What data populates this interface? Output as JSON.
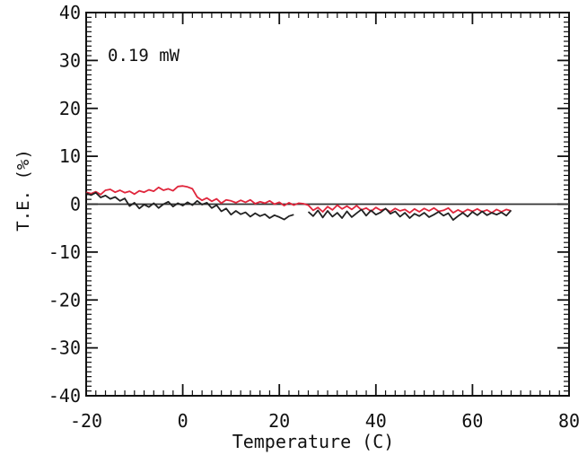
{
  "chart_data": {
    "type": "line",
    "title": "",
    "annotation": "0.19 mW",
    "xlabel": "Temperature (C)",
    "ylabel": "T.E. (%)",
    "xlim": [
      -20,
      80
    ],
    "ylim": [
      -40,
      40
    ],
    "xticks": [
      -20,
      0,
      20,
      40,
      60,
      80
    ],
    "yticks": [
      -40,
      -30,
      -20,
      -10,
      0,
      10,
      20,
      30,
      40
    ],
    "xtick_labels": [
      "-20",
      "0",
      "20",
      "40",
      "60",
      "80"
    ],
    "ytick_labels": [
      "-40",
      "-30",
      "-20",
      "-10",
      "0",
      "10",
      "20",
      "30",
      "40"
    ],
    "reference_line": {
      "y": 0,
      "color": "#333333"
    },
    "series": [
      {
        "color": "#e0263c",
        "points": [
          [
            -20,
            2.5
          ],
          [
            -19,
            2.2
          ],
          [
            -18,
            2.6
          ],
          [
            -17,
            2.0
          ],
          [
            -16,
            2.9
          ],
          [
            -15,
            3.1
          ],
          [
            -14,
            2.5
          ],
          [
            -13,
            2.9
          ],
          [
            -12,
            2.4
          ],
          [
            -11,
            2.7
          ],
          [
            -10,
            2.1
          ],
          [
            -9,
            2.8
          ],
          [
            -8,
            2.5
          ],
          [
            -7,
            3.0
          ],
          [
            -6,
            2.7
          ],
          [
            -5,
            3.5
          ],
          [
            -4,
            2.9
          ],
          [
            -3,
            3.2
          ],
          [
            -2,
            2.8
          ],
          [
            -1,
            3.7
          ],
          [
            0,
            3.8
          ],
          [
            1,
            3.6
          ],
          [
            2,
            3.2
          ],
          [
            3,
            1.5
          ],
          [
            4,
            0.8
          ],
          [
            5,
            1.3
          ],
          [
            6,
            0.6
          ],
          [
            7,
            1.1
          ],
          [
            8,
            0.2
          ],
          [
            9,
            0.9
          ],
          [
            10,
            0.7
          ],
          [
            11,
            0.3
          ],
          [
            12,
            0.8
          ],
          [
            13,
            0.4
          ],
          [
            14,
            0.9
          ],
          [
            15,
            0.1
          ],
          [
            16,
            0.5
          ],
          [
            17,
            0.2
          ],
          [
            18,
            0.7
          ],
          [
            19,
            0.0
          ],
          [
            20,
            0.4
          ],
          [
            21,
            -0.3
          ],
          [
            22,
            0.3
          ],
          [
            23,
            -0.2
          ],
          [
            24,
            0.2
          ],
          [
            25,
            0.1
          ],
          [
            26,
            -0.2
          ],
          [
            27,
            -1.3
          ],
          [
            28,
            -0.7
          ],
          [
            29,
            -1.6
          ],
          [
            30,
            -0.5
          ],
          [
            31,
            -1.2
          ],
          [
            32,
            -0.2
          ],
          [
            33,
            -1.0
          ],
          [
            34,
            -0.4
          ],
          [
            35,
            -1.1
          ],
          [
            36,
            -0.3
          ],
          [
            37,
            -1.2
          ],
          [
            38,
            -0.8
          ],
          [
            39,
            -1.5
          ],
          [
            40,
            -0.7
          ],
          [
            41,
            -1.3
          ],
          [
            42,
            -1.0
          ],
          [
            43,
            -1.6
          ],
          [
            44,
            -0.9
          ],
          [
            45,
            -1.4
          ],
          [
            46,
            -1.1
          ],
          [
            47,
            -1.8
          ],
          [
            48,
            -1.0
          ],
          [
            49,
            -1.6
          ],
          [
            50,
            -0.9
          ],
          [
            51,
            -1.4
          ],
          [
            52,
            -0.8
          ],
          [
            53,
            -1.5
          ],
          [
            54,
            -1.3
          ],
          [
            55,
            -0.8
          ],
          [
            56,
            -1.8
          ],
          [
            57,
            -1.2
          ],
          [
            58,
            -1.7
          ],
          [
            59,
            -1.1
          ],
          [
            60,
            -1.5
          ],
          [
            61,
            -1.0
          ],
          [
            62,
            -1.6
          ],
          [
            63,
            -1.2
          ],
          [
            64,
            -1.8
          ],
          [
            65,
            -1.1
          ],
          [
            66,
            -1.6
          ],
          [
            67,
            -1.1
          ],
          [
            68,
            -1.4
          ]
        ]
      },
      {
        "color": "#222222",
        "points": [
          [
            -20,
            2.3
          ],
          [
            -19,
            1.9
          ],
          [
            -18,
            2.4
          ],
          [
            -17,
            1.4
          ],
          [
            -16,
            1.8
          ],
          [
            -15,
            1.1
          ],
          [
            -14,
            1.5
          ],
          [
            -13,
            0.7
          ],
          [
            -12,
            1.2
          ],
          [
            -11,
            -0.4
          ],
          [
            -10,
            0.3
          ],
          [
            -9,
            -0.9
          ],
          [
            -8,
            -0.1
          ],
          [
            -7,
            -0.6
          ],
          [
            -6,
            0.2
          ],
          [
            -5,
            -0.8
          ],
          [
            -4,
            0.0
          ],
          [
            -3,
            0.5
          ],
          [
            -2,
            -0.5
          ],
          [
            -1,
            0.2
          ],
          [
            0,
            -0.3
          ],
          [
            1,
            0.4
          ],
          [
            2,
            -0.2
          ],
          [
            3,
            0.7
          ],
          [
            4,
            -0.1
          ],
          [
            5,
            0.3
          ],
          [
            6,
            -0.8
          ],
          [
            7,
            -0.2
          ],
          [
            8,
            -1.5
          ],
          [
            9,
            -0.9
          ],
          [
            10,
            -2.2
          ],
          [
            11,
            -1.4
          ],
          [
            12,
            -2.1
          ],
          [
            13,
            -1.7
          ],
          [
            14,
            -2.6
          ],
          [
            15,
            -1.9
          ],
          [
            16,
            -2.5
          ],
          [
            17,
            -2.1
          ],
          [
            18,
            -2.9
          ],
          [
            19,
            -2.3
          ],
          [
            20,
            -2.7
          ],
          [
            21,
            -3.2
          ],
          [
            22,
            -2.5
          ],
          [
            23,
            -2.2
          ]
        ]
      },
      {
        "color": "#222222",
        "points": [
          [
            26,
            -1.6
          ],
          [
            27,
            -2.5
          ],
          [
            28,
            -1.3
          ],
          [
            29,
            -2.8
          ],
          [
            30,
            -1.4
          ],
          [
            31,
            -2.6
          ],
          [
            32,
            -1.8
          ],
          [
            33,
            -2.9
          ],
          [
            34,
            -1.5
          ],
          [
            35,
            -2.7
          ],
          [
            36,
            -1.9
          ],
          [
            37,
            -1.1
          ],
          [
            38,
            -2.4
          ],
          [
            39,
            -1.3
          ],
          [
            40,
            -2.2
          ],
          [
            41,
            -1.7
          ],
          [
            42,
            -0.9
          ],
          [
            43,
            -2.0
          ],
          [
            44,
            -1.5
          ],
          [
            45,
            -2.6
          ],
          [
            46,
            -1.8
          ],
          [
            47,
            -2.9
          ],
          [
            48,
            -2.0
          ],
          [
            49,
            -2.5
          ],
          [
            50,
            -1.8
          ],
          [
            51,
            -2.7
          ],
          [
            52,
            -2.2
          ],
          [
            53,
            -1.6
          ],
          [
            54,
            -2.4
          ],
          [
            55,
            -1.9
          ],
          [
            56,
            -3.3
          ],
          [
            57,
            -2.5
          ],
          [
            58,
            -1.8
          ],
          [
            59,
            -2.6
          ],
          [
            60,
            -1.6
          ],
          [
            61,
            -2.3
          ],
          [
            62,
            -1.5
          ],
          [
            63,
            -2.3
          ],
          [
            64,
            -1.8
          ],
          [
            65,
            -2.2
          ],
          [
            66,
            -1.7
          ],
          [
            67,
            -2.4
          ],
          [
            68,
            -1.3
          ]
        ]
      }
    ]
  }
}
